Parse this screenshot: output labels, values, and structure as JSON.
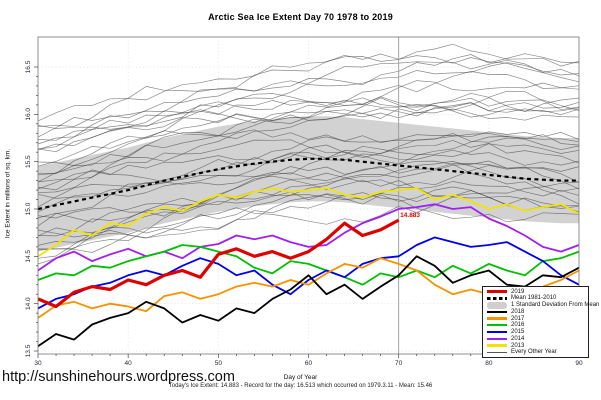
{
  "page": {
    "url_text": "http://sunshinehours.wordpress.com"
  },
  "chart_data": {
    "type": "line",
    "title": "Arctic Sea Ice Extent Day 70 1978 to 2019",
    "xlabel": "Day of Year",
    "ylabel": "Ice Extent in millions of sq. km.",
    "footer": "Today's Ice Extent: 14.883  - Record for the day: 16.513 which occurred on 1979.3.11   - Mean: 15.46",
    "xlim": [
      30,
      90
    ],
    "ylim": [
      13.5,
      16.5
    ],
    "x_ticks": [
      30,
      40,
      50,
      60,
      70,
      80,
      90
    ],
    "y_ticks": [
      13.5,
      14.0,
      14.5,
      15.0,
      15.5,
      16.0,
      16.5
    ],
    "grid": "dotted",
    "legend_position": "bottom-right-inside",
    "vline_x": 70,
    "annotation": {
      "text": "14.883",
      "x": 70,
      "y": 14.883,
      "color": "#DD0000"
    },
    "x": [
      30,
      32,
      34,
      36,
      38,
      40,
      42,
      44,
      46,
      48,
      50,
      52,
      54,
      56,
      58,
      60,
      62,
      64,
      66,
      68,
      70,
      72,
      74,
      76,
      78,
      80,
      82,
      84,
      86,
      88,
      90
    ],
    "series": [
      {
        "name": "2019",
        "color": "#DD0000",
        "width": 3.2,
        "values": [
          14.05,
          13.97,
          14.12,
          14.18,
          14.15,
          14.25,
          14.2,
          14.3,
          14.35,
          14.28,
          14.52,
          14.58,
          14.5,
          14.55,
          14.48,
          14.55,
          14.68,
          14.85,
          14.72,
          14.78,
          14.883
        ]
      },
      {
        "name": "Mean 1981-2010",
        "color": "#000000",
        "width": 2.2,
        "dash": "4,3.5",
        "values": [
          15.0,
          15.04,
          15.08,
          15.12,
          15.16,
          15.2,
          15.25,
          15.3,
          15.34,
          15.38,
          15.42,
          15.45,
          15.48,
          15.5,
          15.52,
          15.53,
          15.53,
          15.52,
          15.5,
          15.48,
          15.46,
          15.44,
          15.42,
          15.4,
          15.38,
          15.36,
          15.34,
          15.32,
          15.31,
          15.3,
          15.3
        ]
      },
      {
        "name": "2018",
        "color": "#000000",
        "width": 1.8,
        "values": [
          13.55,
          13.68,
          13.62,
          13.78,
          13.85,
          13.9,
          14.02,
          13.95,
          13.8,
          13.88,
          13.82,
          13.95,
          13.9,
          14.05,
          14.15,
          14.3,
          14.1,
          14.2,
          14.05,
          14.18,
          14.3,
          14.5,
          14.4,
          14.22,
          14.3,
          14.35,
          14.2,
          14.18,
          14.3,
          14.28,
          14.38
        ]
      },
      {
        "name": "2017",
        "color": "#F59300",
        "width": 1.8,
        "values": [
          13.85,
          13.98,
          14.02,
          13.95,
          14.0,
          13.97,
          13.92,
          14.08,
          14.12,
          14.05,
          14.1,
          14.18,
          14.22,
          14.18,
          14.25,
          14.2,
          14.32,
          14.42,
          14.38,
          14.48,
          14.42,
          14.35,
          14.2,
          14.1,
          14.15,
          14.1,
          14.15,
          14.12,
          14.18,
          14.25,
          14.35
        ]
      },
      {
        "name": "2016",
        "color": "#00C000",
        "width": 1.8,
        "values": [
          14.25,
          14.32,
          14.3,
          14.4,
          14.38,
          14.45,
          14.5,
          14.55,
          14.62,
          14.6,
          14.55,
          14.5,
          14.38,
          14.32,
          14.45,
          14.42,
          14.35,
          14.28,
          14.2,
          14.32,
          14.28,
          14.35,
          14.28,
          14.4,
          14.32,
          14.42,
          14.35,
          14.3,
          14.45,
          14.48,
          14.55
        ]
      },
      {
        "name": "2015",
        "color": "#0000EE",
        "width": 1.8,
        "values": [
          13.95,
          14.05,
          14.1,
          14.18,
          14.22,
          14.3,
          14.35,
          14.3,
          14.4,
          14.48,
          14.42,
          14.3,
          14.35,
          14.2,
          14.1,
          14.25,
          14.35,
          14.28,
          14.42,
          14.48,
          14.5,
          14.62,
          14.7,
          14.65,
          14.6,
          14.62,
          14.65,
          14.55,
          14.45,
          14.3,
          14.2
        ]
      },
      {
        "name": "2014",
        "color": "#A020F0",
        "width": 1.8,
        "values": [
          14.35,
          14.48,
          14.55,
          14.45,
          14.52,
          14.58,
          14.5,
          14.55,
          14.48,
          14.6,
          14.63,
          14.72,
          14.68,
          14.72,
          14.65,
          14.6,
          14.62,
          14.75,
          14.85,
          14.92,
          15.0,
          15.02,
          15.05,
          15.0,
          15.02,
          14.9,
          14.82,
          14.72,
          14.6,
          14.55,
          14.62
        ]
      },
      {
        "name": "2013",
        "color": "#F2E400",
        "width": 1.8,
        "values": [
          14.5,
          14.62,
          14.78,
          14.72,
          14.85,
          14.82,
          14.95,
          15.02,
          14.98,
          15.08,
          15.15,
          15.12,
          15.18,
          15.22,
          15.18,
          15.2,
          15.22,
          15.15,
          15.12,
          15.18,
          15.2,
          15.22,
          15.1,
          15.15,
          15.08,
          15.0,
          15.05,
          14.98,
          15.02,
          15.05,
          14.95
        ]
      }
    ],
    "band": {
      "name": "1 Standard Deviation From Mean",
      "around": "Mean 1981-2010",
      "sd": 0.45,
      "color": "#D2D2D2"
    },
    "background_years": {
      "name": "Every Other Year",
      "color": "#3C3C3C",
      "count": 32,
      "start_min": 14.45,
      "start_max": 15.95,
      "rise_min": 0.3,
      "rise_max": 0.85,
      "noise": 0.16,
      "seed": 12345
    }
  },
  "legend": {
    "items": [
      {
        "label": "2019",
        "color": "#DD0000",
        "style": "thick"
      },
      {
        "label": "Mean 1981-2010",
        "color": "#000000",
        "style": "dashed"
      },
      {
        "label": "1 Standard Deviation From Mean",
        "color": "#CFCFCF",
        "style": "band"
      },
      {
        "label": "2018",
        "color": "#000000",
        "style": "line"
      },
      {
        "label": "2017",
        "color": "#F59300",
        "style": "line"
      },
      {
        "label": "2016",
        "color": "#00C000",
        "style": "line"
      },
      {
        "label": "2015",
        "color": "#0000EE",
        "style": "line"
      },
      {
        "label": "2014",
        "color": "#A020F0",
        "style": "line"
      },
      {
        "label": "2013",
        "color": "#F2E400",
        "style": "line"
      },
      {
        "label": "Every Other Year",
        "color": "#555555",
        "style": "thin"
      }
    ]
  }
}
